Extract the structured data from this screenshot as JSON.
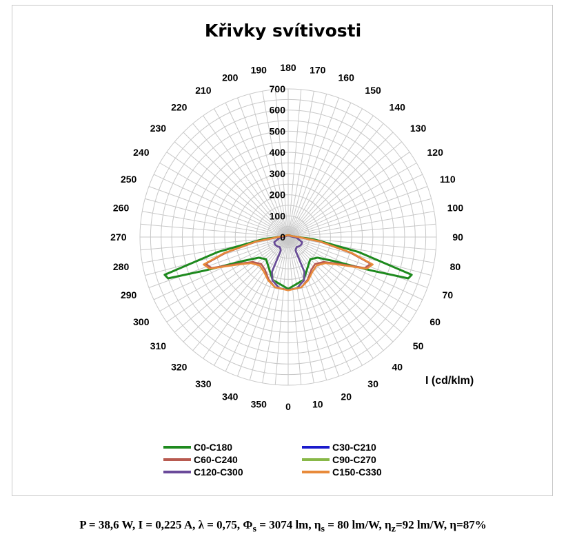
{
  "chart_data": {
    "type": "polar-line",
    "title": "Křivky svítivosti",
    "unit_label": "I (cd/klm)",
    "radial_ticks": [
      "0",
      "100",
      "200",
      "300",
      "400",
      "500",
      "600",
      "700"
    ],
    "radial_max": 700,
    "angle_labels": [
      "0",
      "10",
      "20",
      "30",
      "40",
      "50",
      "60",
      "70",
      "80",
      "90",
      "100",
      "110",
      "120",
      "130",
      "140",
      "150",
      "160",
      "170",
      "180",
      "190",
      "200",
      "210",
      "220",
      "230",
      "240",
      "250",
      "260",
      "270",
      "280",
      "290",
      "300",
      "310",
      "320",
      "330",
      "340",
      "350"
    ],
    "grid": true,
    "legend_position": "bottom",
    "series": [
      {
        "name": "C0-C180",
        "color": "#1e8a1e",
        "points": [
          [
            0,
            245
          ],
          [
            20,
            215
          ],
          [
            35,
            165
          ],
          [
            45,
            148
          ],
          [
            55,
            170
          ],
          [
            62,
            240
          ],
          [
            68,
            420
          ],
          [
            71,
            600
          ],
          [
            73,
            610
          ],
          [
            78,
            340
          ],
          [
            85,
            120
          ],
          [
            90,
            45
          ],
          [
            110,
            15
          ],
          [
            150,
            10
          ],
          [
            180,
            8
          ],
          [
            210,
            10
          ],
          [
            250,
            15
          ],
          [
            270,
            45
          ],
          [
            275,
            120
          ],
          [
            282,
            340
          ],
          [
            287,
            610
          ],
          [
            289,
            600
          ],
          [
            292,
            420
          ],
          [
            298,
            240
          ],
          [
            305,
            170
          ],
          [
            315,
            148
          ],
          [
            325,
            165
          ],
          [
            340,
            215
          ],
          [
            360,
            245
          ]
        ]
      },
      {
        "name": "C30-C210",
        "color": "#1a1acc",
        "points": [
          [
            0,
            250
          ],
          [
            10,
            245
          ],
          [
            20,
            215
          ],
          [
            25,
            180
          ],
          [
            27,
            100
          ],
          [
            28,
            80
          ],
          [
            30,
            70
          ],
          [
            40,
            62
          ],
          [
            50,
            68
          ],
          [
            60,
            72
          ],
          [
            70,
            70
          ],
          [
            85,
            40
          ],
          [
            100,
            15
          ],
          [
            150,
            8
          ],
          [
            180,
            6
          ],
          [
            210,
            8
          ],
          [
            260,
            15
          ],
          [
            275,
            40
          ],
          [
            290,
            70
          ],
          [
            300,
            72
          ],
          [
            310,
            68
          ],
          [
            320,
            62
          ],
          [
            330,
            70
          ],
          [
            332,
            80
          ],
          [
            333,
            100
          ],
          [
            335,
            180
          ],
          [
            340,
            215
          ],
          [
            350,
            245
          ],
          [
            360,
            250
          ]
        ]
      },
      {
        "name": "C60-C240",
        "color": "#b85a50",
        "points": [
          [
            0,
            250
          ],
          [
            15,
            245
          ],
          [
            25,
            220
          ],
          [
            35,
            190
          ],
          [
            45,
            180
          ],
          [
            55,
            205
          ],
          [
            62,
            270
          ],
          [
            68,
            390
          ],
          [
            72,
            410
          ],
          [
            76,
            300
          ],
          [
            82,
            150
          ],
          [
            90,
            45
          ],
          [
            110,
            15
          ],
          [
            150,
            10
          ],
          [
            180,
            8
          ],
          [
            210,
            10
          ],
          [
            250,
            15
          ],
          [
            270,
            45
          ],
          [
            278,
            150
          ],
          [
            284,
            300
          ],
          [
            288,
            410
          ],
          [
            292,
            390
          ],
          [
            298,
            270
          ],
          [
            305,
            205
          ],
          [
            315,
            180
          ],
          [
            325,
            190
          ],
          [
            335,
            220
          ],
          [
            345,
            245
          ],
          [
            360,
            250
          ]
        ]
      },
      {
        "name": "C90-C270",
        "color": "#88b848",
        "points": [
          [
            0,
            250
          ],
          [
            10,
            245
          ],
          [
            20,
            215
          ],
          [
            25,
            180
          ],
          [
            27,
            100
          ],
          [
            28,
            80
          ],
          [
            30,
            70
          ],
          [
            40,
            62
          ],
          [
            50,
            68
          ],
          [
            60,
            72
          ],
          [
            70,
            70
          ],
          [
            85,
            40
          ],
          [
            100,
            15
          ],
          [
            150,
            8
          ],
          [
            180,
            6
          ],
          [
            210,
            8
          ],
          [
            260,
            15
          ],
          [
            275,
            40
          ],
          [
            290,
            70
          ],
          [
            300,
            72
          ],
          [
            310,
            68
          ],
          [
            320,
            62
          ],
          [
            330,
            70
          ],
          [
            332,
            80
          ],
          [
            333,
            100
          ],
          [
            335,
            180
          ],
          [
            340,
            215
          ],
          [
            350,
            245
          ],
          [
            360,
            250
          ]
        ]
      },
      {
        "name": "C120-C300",
        "color": "#6a4a9a",
        "points": [
          [
            0,
            250
          ],
          [
            10,
            245
          ],
          [
            20,
            218
          ],
          [
            25,
            182
          ],
          [
            27,
            100
          ],
          [
            28,
            80
          ],
          [
            30,
            70
          ],
          [
            40,
            62
          ],
          [
            50,
            68
          ],
          [
            60,
            72
          ],
          [
            70,
            70
          ],
          [
            85,
            40
          ],
          [
            100,
            15
          ],
          [
            150,
            8
          ],
          [
            180,
            6
          ],
          [
            210,
            8
          ],
          [
            260,
            15
          ],
          [
            275,
            40
          ],
          [
            290,
            70
          ],
          [
            300,
            72
          ],
          [
            310,
            68
          ],
          [
            320,
            62
          ],
          [
            330,
            70
          ],
          [
            332,
            80
          ],
          [
            333,
            100
          ],
          [
            335,
            182
          ],
          [
            340,
            218
          ],
          [
            350,
            245
          ],
          [
            360,
            250
          ]
        ]
      },
      {
        "name": "C150-C330",
        "color": "#e88a3a",
        "points": [
          [
            0,
            252
          ],
          [
            15,
            245
          ],
          [
            25,
            225
          ],
          [
            35,
            200
          ],
          [
            45,
            190
          ],
          [
            55,
            215
          ],
          [
            62,
            280
          ],
          [
            68,
            400
          ],
          [
            72,
            420
          ],
          [
            76,
            310
          ],
          [
            82,
            155
          ],
          [
            90,
            48
          ],
          [
            110,
            15
          ],
          [
            150,
            10
          ],
          [
            180,
            8
          ],
          [
            210,
            10
          ],
          [
            250,
            15
          ],
          [
            270,
            48
          ],
          [
            278,
            155
          ],
          [
            284,
            310
          ],
          [
            288,
            420
          ],
          [
            292,
            400
          ],
          [
            298,
            280
          ],
          [
            305,
            215
          ],
          [
            315,
            190
          ],
          [
            325,
            200
          ],
          [
            335,
            225
          ],
          [
            345,
            245
          ],
          [
            360,
            252
          ]
        ]
      }
    ]
  },
  "footer": {
    "p": "P = 38,6 W, I = 0,225 A, λ = 0,75, Φ",
    "p_sub": "s",
    "q": " = 3074 lm, η",
    "q_sub": "s",
    "r": " = 80 lm/W, η",
    "r_sub": "z",
    "s": "=92 lm/W,  η=87%"
  }
}
